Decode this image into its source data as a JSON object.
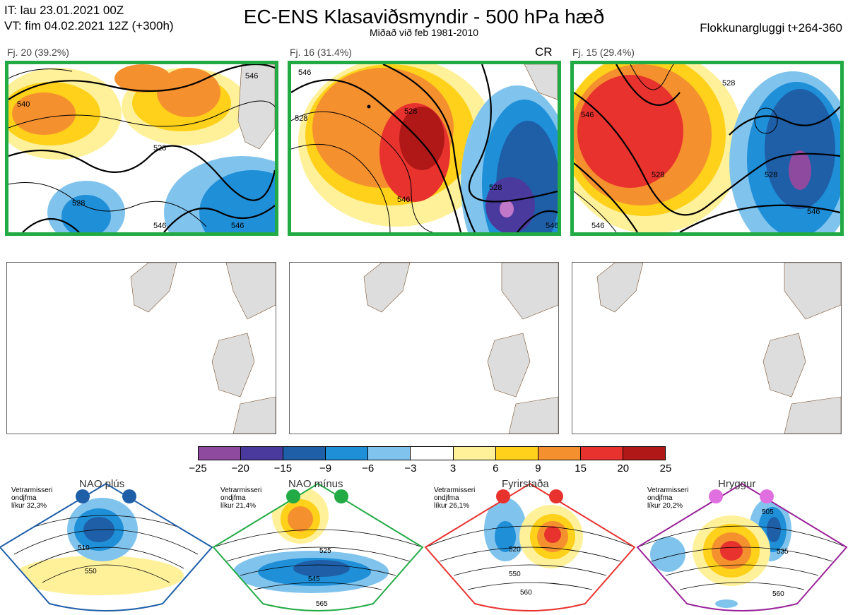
{
  "header": {
    "it_line": "IT: lau 23.01.2021 00Z",
    "vt_line": "VT: fim 04.02.2021 12Z  (+300h)",
    "title": "EC-ENS Klasaviðsmyndir - 500 hPa hæð",
    "subtitle": "Miðað við feb 1981-2010",
    "window": "Flokkunargluggi t+264-360"
  },
  "clusters": [
    {
      "label": "Fj. 20 (39.2%)",
      "tag": "",
      "contours": [
        "540",
        "528",
        "528",
        "546",
        "546",
        "546"
      ]
    },
    {
      "label": "Fj. 16 (31.4%)",
      "tag": "CR",
      "contours": [
        "546",
        "528",
        "546",
        "528",
        "528",
        "546"
      ]
    },
    {
      "label": "Fj. 15 (29.4%)",
      "tag": "",
      "contours": [
        "528",
        "546",
        "528",
        "528",
        "546",
        "546"
      ]
    }
  ],
  "colorbar": {
    "ticks": [
      "−25",
      "−20",
      "−15",
      "−9",
      "−6",
      "−3",
      "3",
      "6",
      "9",
      "15",
      "20",
      "25"
    ],
    "colors": [
      "#8e4a9e",
      "#4a3a9e",
      "#1e5fa8",
      "#1f8fd8",
      "#80c4ee",
      "#ffffff",
      "#fff19a",
      "#ffd11a",
      "#f5902e",
      "#e8322e",
      "#b01818"
    ]
  },
  "regimes": [
    {
      "name": "NAO plús",
      "note": [
        "Vetrarmisseri",
        "ondjfma",
        "líkur 32,3%"
      ],
      "color": "#1e5fa8",
      "contours": [
        "510",
        "550"
      ]
    },
    {
      "name": "NAO mínus",
      "note": [
        "Vetrarmisseri",
        "ondjfma",
        "líkur 21,4%"
      ],
      "color": "#22aa44",
      "contours": [
        "525",
        "545",
        "565"
      ]
    },
    {
      "name": "Fyrirstaða",
      "note": [
        "Vetrarmisseri",
        "ondjfma",
        "líkur 26,1%"
      ],
      "color": "#e8322e",
      "contours": [
        "520",
        "550",
        "560"
      ]
    },
    {
      "name": "Hryggur",
      "note": [
        "Vetrarmisseri",
        "ondjfma",
        "líkur 20,2%"
      ],
      "color": "#e070e0",
      "contours": [
        "505",
        "535",
        "560"
      ]
    }
  ]
}
